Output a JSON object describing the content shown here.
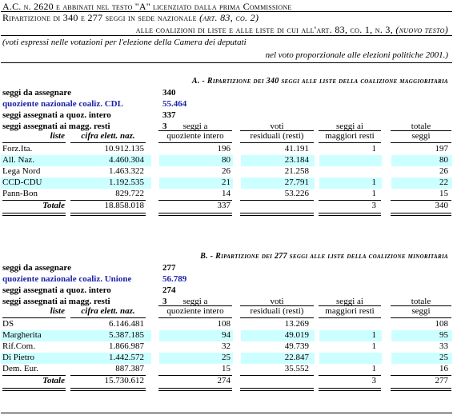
{
  "header": {
    "line1": "A.C. n. 2620 e abbinati nel testo \"A\" licenziato dalla prima Commissione",
    "line2_prefix": "Ripartizione di 340 e 277 seggi in sede nazionale",
    "line2_italic": "(art. 83, co. 2)",
    "line3_prefix": "alle coalizioni di liste e alle liste di cui all'art. 83, co. 1, n. 3,",
    "line3_italic": "(nuovo testo)"
  },
  "note": {
    "line1": "(voti espressi nelle votazioni per l'elezione della Camera dei deputati",
    "line2": "nel voto proporzionale alle elezioni politiche 2001.)"
  },
  "columns": {
    "liste": "liste",
    "cifra": "cifra elett. naz.",
    "quoziente": [
      "seggi a",
      "quoziente intero"
    ],
    "resti": [
      "voti",
      "residuali (resti)"
    ],
    "maggiori": [
      "seggi ai",
      "maggiori resti"
    ],
    "totale": [
      "totale",
      "seggi"
    ]
  },
  "sectionA": {
    "title": "A. - Ripartizione dei 340 seggi alle liste della coalizione maggioritaria",
    "stats": [
      {
        "label": "seggi da assegnare",
        "value": "340",
        "blue": false
      },
      {
        "label": "quoziente nazionale coaliz. CDL",
        "value": "55.464",
        "blue": true
      },
      {
        "label": "seggi assegnati a quoz. intero",
        "value": "337",
        "blue": false
      },
      {
        "label": "seggi assegnati ai magg. resti",
        "value": "3",
        "blue": false
      }
    ],
    "rows": [
      {
        "name": "Forz.Ita.",
        "cifra": "10.912.135",
        "quoz": "196",
        "resti": "41.191",
        "magg": "1",
        "tot": "197"
      },
      {
        "name": "All. Naz.",
        "cifra": "4.460.304",
        "quoz": "80",
        "resti": "23.184",
        "magg": "",
        "tot": "80"
      },
      {
        "name": "Lega Nord",
        "cifra": "1.463.322",
        "quoz": "26",
        "resti": "21.258",
        "magg": "",
        "tot": "26"
      },
      {
        "name": "CCD-CDU",
        "cifra": "1.192.535",
        "quoz": "21",
        "resti": "27.791",
        "magg": "1",
        "tot": "22"
      },
      {
        "name": "Pann-Bon",
        "cifra": "829.722",
        "quoz": "14",
        "resti": "53.226",
        "magg": "1",
        "tot": "15"
      }
    ],
    "total": {
      "name": "Totale",
      "cifra": "18.858.018",
      "quoz": "337",
      "resti": "",
      "magg": "3",
      "tot": "340"
    }
  },
  "sectionB": {
    "title": "B. - Ripartizione dei 277 seggi alle liste della coalizione minoritaria",
    "stats": [
      {
        "label": "seggi da assegnare",
        "value": "277",
        "blue": false
      },
      {
        "label": "quoziente nazionale coaliz. Unione",
        "value": "56.789",
        "blue": true
      },
      {
        "label": "seggi assegnati a quoz. intero",
        "value": "274",
        "blue": false
      },
      {
        "label": "seggi assegnati ai magg. resti",
        "value": "3",
        "blue": false
      }
    ],
    "rows": [
      {
        "name": "DS",
        "cifra": "6.146.481",
        "quoz": "108",
        "resti": "13.269",
        "magg": "",
        "tot": "108"
      },
      {
        "name": "Margherita",
        "cifra": "5.387.185",
        "quoz": "94",
        "resti": "49.019",
        "magg": "1",
        "tot": "95"
      },
      {
        "name": "Rif.Com.",
        "cifra": "1.866.987",
        "quoz": "32",
        "resti": "49.739",
        "magg": "1",
        "tot": "33"
      },
      {
        "name": "Di Pietro",
        "cifra": "1.442.572",
        "quoz": "25",
        "resti": "22.847",
        "magg": "",
        "tot": "25"
      },
      {
        "name": "Dem. Eur.",
        "cifra": "887.387",
        "quoz": "15",
        "resti": "35.552",
        "magg": "1",
        "tot": "16"
      }
    ],
    "total": {
      "name": "Totale",
      "cifra": "15.730.612",
      "quoz": "274",
      "resti": "",
      "magg": "3",
      "tot": "277"
    }
  },
  "colors": {
    "band": "#ccffff",
    "blue_text": "#1a22a8"
  }
}
